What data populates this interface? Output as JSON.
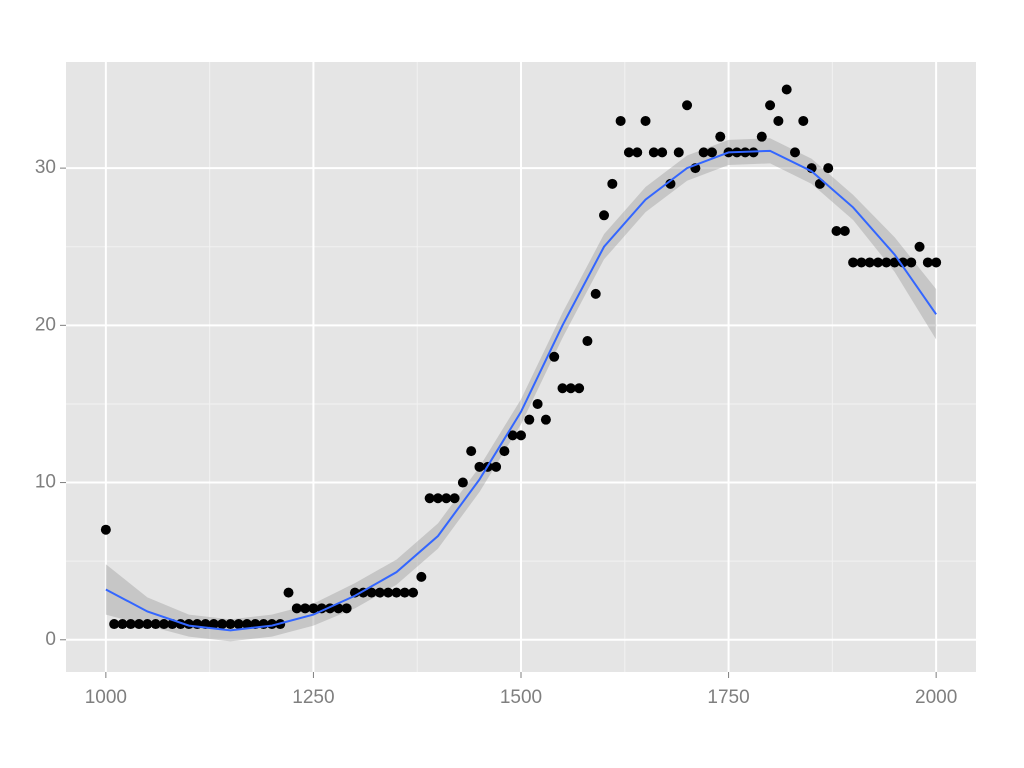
{
  "chart_data": {
    "type": "scatter",
    "x": [
      1000,
      1010,
      1020,
      1030,
      1040,
      1050,
      1060,
      1070,
      1080,
      1090,
      1100,
      1110,
      1120,
      1130,
      1140,
      1150,
      1160,
      1170,
      1180,
      1190,
      1200,
      1210,
      1220,
      1230,
      1240,
      1250,
      1260,
      1270,
      1280,
      1290,
      1300,
      1310,
      1320,
      1330,
      1340,
      1350,
      1360,
      1370,
      1380,
      1390,
      1400,
      1410,
      1420,
      1430,
      1440,
      1450,
      1460,
      1470,
      1480,
      1490,
      1500,
      1510,
      1520,
      1530,
      1540,
      1550,
      1560,
      1570,
      1580,
      1590,
      1600,
      1610,
      1620,
      1630,
      1640,
      1650,
      1660,
      1670,
      1680,
      1690,
      1700,
      1710,
      1720,
      1730,
      1740,
      1750,
      1760,
      1770,
      1780,
      1790,
      1800,
      1810,
      1820,
      1830,
      1840,
      1850,
      1860,
      1870,
      1880,
      1890,
      1900,
      1910,
      1920,
      1930,
      1940,
      1950,
      1960,
      1970,
      1980,
      1990,
      2000
    ],
    "values": [
      7,
      1,
      1,
      1,
      1,
      1,
      1,
      1,
      1,
      1,
      1,
      1,
      1,
      1,
      1,
      1,
      1,
      1,
      1,
      1,
      1,
      1,
      3,
      2,
      2,
      2,
      2,
      2,
      2,
      2,
      3,
      3,
      3,
      3,
      3,
      3,
      3,
      3,
      4,
      9,
      9,
      9,
      9,
      10,
      12,
      11,
      11,
      11,
      12,
      13,
      13,
      14,
      15,
      14,
      18,
      16,
      16,
      16,
      19,
      22,
      27,
      29,
      33,
      31,
      31,
      33,
      31,
      31,
      29,
      31,
      34,
      30,
      31,
      31,
      32,
      31,
      31,
      31,
      31,
      32,
      34,
      33,
      35,
      31,
      33,
      30,
      29,
      30,
      26,
      26,
      24,
      24,
      24,
      24,
      24,
      24,
      24,
      24,
      25,
      24,
      24
    ],
    "color": "#000000",
    "fit": {
      "color": "#3366ff",
      "band_color": "#999999",
      "x": [
        1000,
        1050,
        1100,
        1150,
        1200,
        1250,
        1300,
        1350,
        1400,
        1450,
        1500,
        1550,
        1600,
        1650,
        1700,
        1750,
        1800,
        1850,
        1900,
        1950,
        2000
      ],
      "values": [
        3.2,
        1.8,
        0.9,
        0.6,
        0.9,
        1.6,
        2.8,
        4.3,
        6.6,
        10.2,
        14.5,
        20,
        25,
        28,
        30,
        31,
        31.1,
        29.8,
        27.5,
        24.5,
        20.7
      ],
      "low": [
        1.6,
        0.9,
        0.2,
        -0.1,
        0.2,
        0.9,
        2.0,
        3.5,
        5.8,
        9.4,
        13.7,
        19.2,
        24.2,
        27.2,
        29.2,
        30.2,
        30.3,
        29.0,
        26.7,
        23.4,
        19.1
      ],
      "high": [
        4.8,
        2.7,
        1.6,
        1.3,
        1.6,
        2.3,
        3.6,
        5.1,
        7.4,
        11.0,
        15.3,
        20.8,
        25.8,
        28.8,
        30.8,
        31.8,
        31.9,
        30.6,
        28.3,
        25.6,
        22.3
      ]
    },
    "xlim": [
      952,
      2048
    ],
    "ylim": [
      -2.05,
      36.75
    ],
    "xticks": [
      1000,
      1250,
      1500,
      1750,
      2000
    ],
    "yticks": [
      0,
      10,
      20,
      30
    ],
    "grid": true
  }
}
